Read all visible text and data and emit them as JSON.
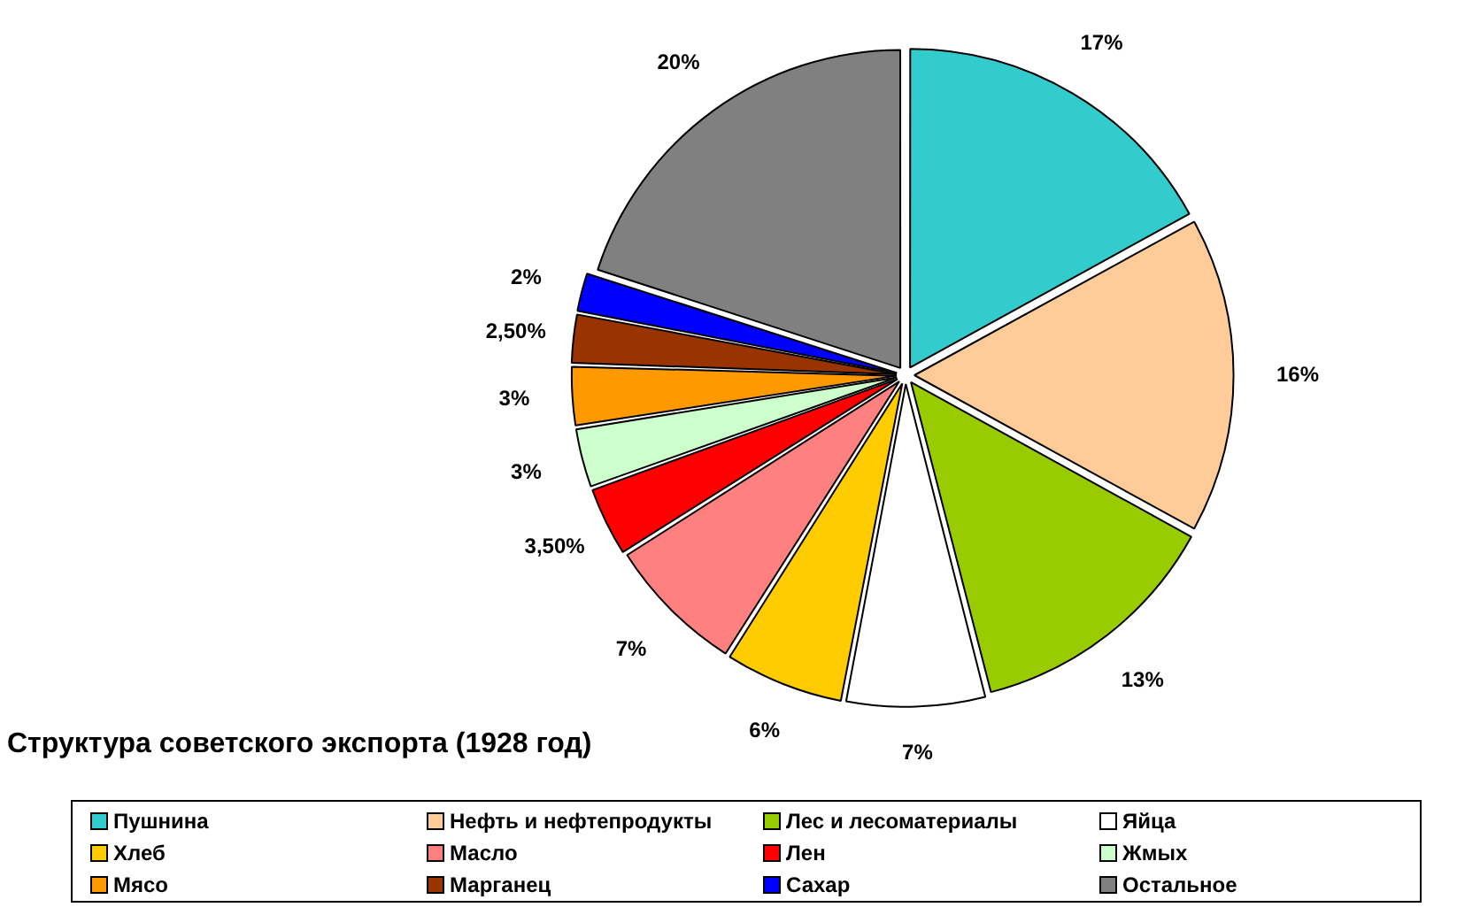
{
  "chart_data": {
    "type": "pie",
    "title": "Структура советского экспорта (1928 год)",
    "categories": [
      "Пушнина",
      "Нефть и нефтепродукты",
      "Лес и лесоматериалы",
      "Яйца",
      "Хлеб",
      "Масло",
      "Лен",
      "Жмых",
      "Мясо",
      "Марганец",
      "Сахар",
      "Остальное"
    ],
    "values": [
      17,
      16,
      13,
      7,
      6,
      7,
      3.5,
      3,
      3,
      2.5,
      2,
      20
    ],
    "value_labels": [
      "17%",
      "16%",
      "13%",
      "7%",
      "6%",
      "7%",
      "3,50%",
      "3%",
      "3%",
      "2,50%",
      "2%",
      "20%"
    ],
    "colors": [
      "#33cccc",
      "#ffcc99",
      "#99cc00",
      "#ffffff",
      "#ffcc00",
      "#ff8080",
      "#ff0000",
      "#ccffcc",
      "#ff9900",
      "#993300",
      "#0000ff",
      "#808080"
    ],
    "legend": "bottom"
  }
}
